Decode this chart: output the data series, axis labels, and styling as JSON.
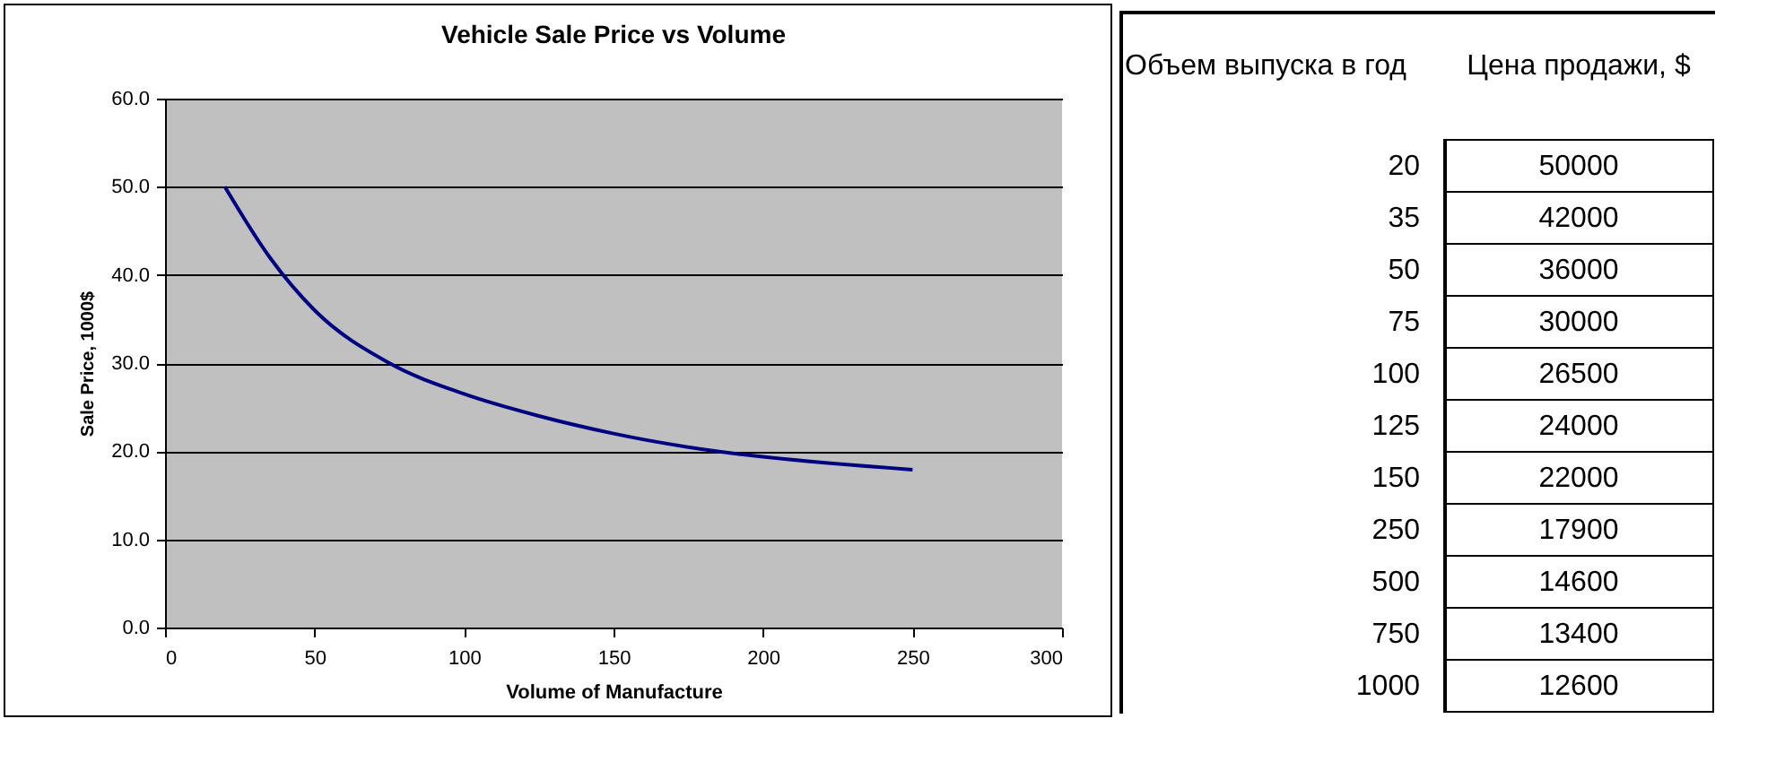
{
  "chart_data": [
    {
      "type": "line",
      "title": "Vehicle Sale Price vs Volume",
      "xlabel": "Volume of Manufacture",
      "ylabel": "Sale Price, 1000$",
      "x": [
        20,
        35,
        50,
        75,
        100,
        125,
        150,
        250
      ],
      "series": [
        {
          "color": "#000080",
          "values": [
            50,
            42,
            36,
            30,
            26.5,
            24,
            22,
            17.9
          ]
        }
      ],
      "xlim": [
        0,
        300
      ],
      "xticks": [
        0,
        50,
        100,
        150,
        200,
        250,
        300
      ],
      "ylim": [
        0,
        60
      ],
      "yticks": [
        {
          "value": 0,
          "label": "0.0"
        },
        {
          "value": 10,
          "label": "10.0"
        },
        {
          "value": 20,
          "label": "20.0"
        },
        {
          "value": 30,
          "label": "30.0"
        },
        {
          "value": 40,
          "label": "40.0"
        },
        {
          "value": 50,
          "label": "50.0"
        },
        {
          "value": 60,
          "label": "60.0"
        }
      ],
      "grid": "y",
      "marker": "none",
      "line_style": "solid"
    },
    {
      "type": "heatmap",
      "ylabel": "Объем выпуска в год",
      "categories": [
        "Цена продажи, $"
      ],
      "y_categories": [
        "20",
        "35",
        "50",
        "75",
        "100",
        "125",
        "150",
        "250",
        "500",
        "750",
        "1000"
      ],
      "cells": [
        [
          50000
        ],
        [
          42000
        ],
        [
          36000
        ],
        [
          30000
        ],
        [
          26500
        ],
        [
          24000
        ],
        [
          22000
        ],
        [
          17900
        ],
        [
          14600
        ],
        [
          13400
        ],
        [
          12600
        ]
      ],
      "data_labels": true
    }
  ]
}
